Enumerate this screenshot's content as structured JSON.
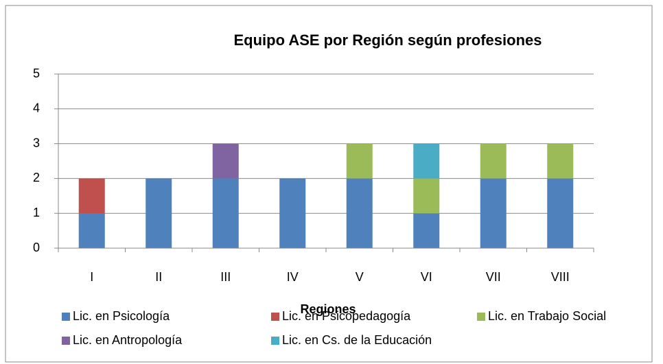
{
  "chart_data": {
    "type": "stacked-bar",
    "title": "Equipo ASE por Región  según profesiones",
    "x_label": "Regiones",
    "categories": [
      "I",
      "II",
      "III",
      "IV",
      "V",
      "VI",
      "VII",
      "VIII"
    ],
    "series": [
      {
        "name": "Lic. en Psicología",
        "color": "#4f81bd",
        "values": [
          1,
          2,
          2,
          2,
          2,
          1,
          2,
          2
        ]
      },
      {
        "name": "Lic. en Psicopedagogía",
        "color": "#c0504d",
        "values": [
          1,
          0,
          0,
          0,
          0,
          0,
          0,
          0
        ]
      },
      {
        "name": "Lic. en Trabajo Social",
        "color": "#9bbb59",
        "values": [
          0,
          0,
          0,
          0,
          1,
          1,
          1,
          1
        ]
      },
      {
        "name": "Lic. en Antropología",
        "color": "#8064a2",
        "values": [
          0,
          0,
          1,
          0,
          0,
          0,
          0,
          0
        ]
      },
      {
        "name": "Lic. en Cs. de la Educación",
        "color": "#4bacc6",
        "values": [
          0,
          0,
          0,
          0,
          0,
          1,
          0,
          0
        ]
      }
    ],
    "ylim": [
      0,
      5
    ],
    "yticks": [
      0,
      1,
      2,
      3,
      4,
      5
    ],
    "grid": true,
    "legend": "bottom"
  }
}
